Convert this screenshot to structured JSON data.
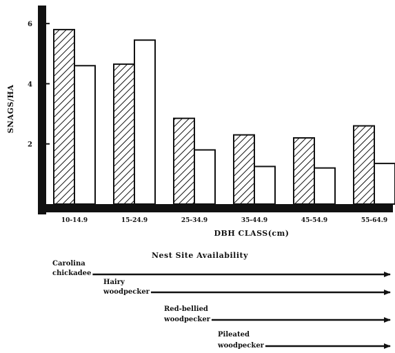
{
  "chart_data": {
    "type": "bar",
    "ylabel": "SNAGS/HA",
    "xlabel": "DBH CLASS(cm)",
    "categories": [
      "10-14.9",
      "15-24.9",
      "25-34.9",
      "35-44.9",
      "45-54.9",
      "55-64.9"
    ],
    "series": [
      {
        "pattern": "hatched",
        "values": [
          5.8,
          4.65,
          2.85,
          2.3,
          2.2,
          2.6
        ]
      },
      {
        "pattern": "open",
        "values": [
          4.6,
          5.45,
          1.8,
          1.25,
          1.2,
          1.35
        ]
      }
    ],
    "ylim": [
      0,
      6.6
    ],
    "yticks": [
      2,
      4,
      6
    ],
    "grid": false
  },
  "nest_site": {
    "title": "Nest Site Availability",
    "species": [
      {
        "label_lines": [
          "Carolina",
          "chickadee"
        ],
        "start_class": "10-14.9"
      },
      {
        "label_lines": [
          "Hairy",
          "woodpecker"
        ],
        "start_class": "15-24.9"
      },
      {
        "label_lines": [
          "Red-bellied",
          "woodpecker"
        ],
        "start_class": "25-34.9"
      },
      {
        "label_lines": [
          "Pileated",
          "woodpecker"
        ],
        "start_class": "35-44.9"
      }
    ]
  },
  "colors": {
    "ink": "#111111",
    "paper": "#ffffff"
  }
}
